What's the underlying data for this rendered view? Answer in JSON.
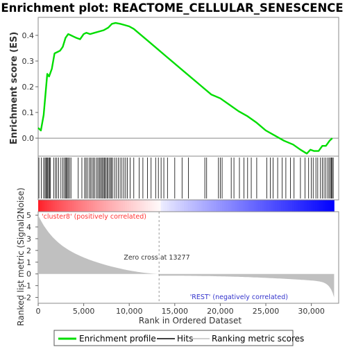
{
  "chart_data": {
    "type": "line",
    "title": "Enrichment plot: REACTOME_CELLULAR_SENESCENCE",
    "xlabel": "Rank in Ordered Dataset",
    "ylabel_top": "Enrichment score (ES)",
    "ylabel_bottom": "Ranked list metric (Signal2Noise)",
    "xlim": [
      0,
      33000
    ],
    "x_ticks": [
      0,
      5000,
      10000,
      15000,
      20000,
      25000,
      30000
    ],
    "x_tick_labels": [
      "0",
      "5,000",
      "10,000",
      "15,000",
      "20,000",
      "25,000",
      "30,000"
    ],
    "es_ylim": [
      -0.07,
      0.47
    ],
    "es_ticks": [
      0.0,
      0.1,
      0.2,
      0.3,
      0.4
    ],
    "es_tick_labels": [
      "0.0",
      "0.1",
      "0.2",
      "0.3",
      "0.4"
    ],
    "metric_ylim": [
      -2.5,
      5.3
    ],
    "metric_ticks": [
      -2,
      -1,
      0,
      1,
      2,
      3,
      4,
      5
    ],
    "metric_tick_labels": [
      "-2",
      "-1",
      "0",
      "1",
      "2",
      "3",
      "4",
      "5"
    ],
    "dataset_size": 32500,
    "zero_cross_rank": 13277,
    "zero_cross_label": "Zero cross at 13277",
    "pos_label": "'cluster8' (positively correlated)",
    "neg_label": "'REST' (negatively correlated)",
    "colors": {
      "es_line": "#00dd00",
      "hits": "#000000",
      "metric_fill": "#c0c0c0",
      "pos_label": "#ff3333",
      "neg_label": "#3333cc",
      "pos_end": "#ff0000",
      "neg_end": "#0000ff"
    },
    "legend": [
      {
        "label": "Enrichment profile",
        "color": "#00dd00",
        "kind": "line-thick"
      },
      {
        "label": "Hits",
        "color": "#000000",
        "kind": "line-thin"
      },
      {
        "label": "Ranking metric scores",
        "color": "#c0c0c0",
        "kind": "line-thin"
      }
    ],
    "es_profile": {
      "x": [
        0,
        300,
        600,
        800,
        1000,
        1200,
        1500,
        1800,
        2100,
        2400,
        2700,
        3000,
        3300,
        3600,
        3900,
        4200,
        4600,
        5000,
        5300,
        5700,
        6200,
        6700,
        7200,
        7700,
        8100,
        8500,
        9000,
        9500,
        10000,
        10500,
        11000,
        12000,
        13000,
        14000,
        15000,
        16000,
        17000,
        18000,
        19000,
        20000,
        21000,
        22000,
        23000,
        24000,
        25000,
        26000,
        27000,
        28000,
        28800,
        29500,
        29900,
        30300,
        30800,
        31200,
        31600,
        32000,
        32300
      ],
      "y": [
        0.04,
        0.03,
        0.09,
        0.17,
        0.25,
        0.24,
        0.27,
        0.33,
        0.335,
        0.34,
        0.355,
        0.39,
        0.405,
        0.4,
        0.395,
        0.39,
        0.385,
        0.405,
        0.41,
        0.405,
        0.41,
        0.415,
        0.42,
        0.43,
        0.445,
        0.448,
        0.445,
        0.44,
        0.435,
        0.425,
        0.41,
        0.38,
        0.35,
        0.32,
        0.29,
        0.26,
        0.23,
        0.2,
        0.17,
        0.155,
        0.13,
        0.105,
        0.085,
        0.06,
        0.03,
        0.01,
        -0.01,
        -0.025,
        -0.045,
        -0.06,
        -0.045,
        -0.05,
        -0.05,
        -0.03,
        -0.03,
        -0.01,
        0.0
      ]
    },
    "hits": [
      80,
      350,
      600,
      750,
      850,
      950,
      1050,
      1150,
      1250,
      1350,
      1700,
      1900,
      2050,
      2250,
      2500,
      2700,
      2850,
      3000,
      3100,
      3200,
      3300,
      3450,
      3600,
      4400,
      4800,
      5100,
      5250,
      5400,
      5600,
      5750,
      5900,
      6050,
      6200,
      6400,
      6550,
      6700,
      6800,
      6950,
      7050,
      7200,
      7300,
      7400,
      7550,
      7650,
      7800,
      7950,
      8050,
      8200,
      8400,
      8600,
      8800,
      9000,
      9200,
      9400,
      9600,
      9800,
      10100,
      10500,
      11100,
      11500,
      12000,
      12400,
      12900,
      13200,
      13500,
      13800,
      14200,
      15000,
      15800,
      16500,
      18300,
      18500,
      19800,
      20000,
      20200,
      21200,
      21500,
      22100,
      22600,
      23000,
      23400,
      24000,
      25100,
      25500,
      25800,
      26300,
      26800,
      27200,
      27700,
      28100,
      28800,
      29300,
      29700,
      30000,
      30200,
      30500,
      30700,
      31000,
      31200,
      31400,
      31600,
      31800,
      31950,
      32100,
      32200,
      32300,
      32400
    ]
  }
}
